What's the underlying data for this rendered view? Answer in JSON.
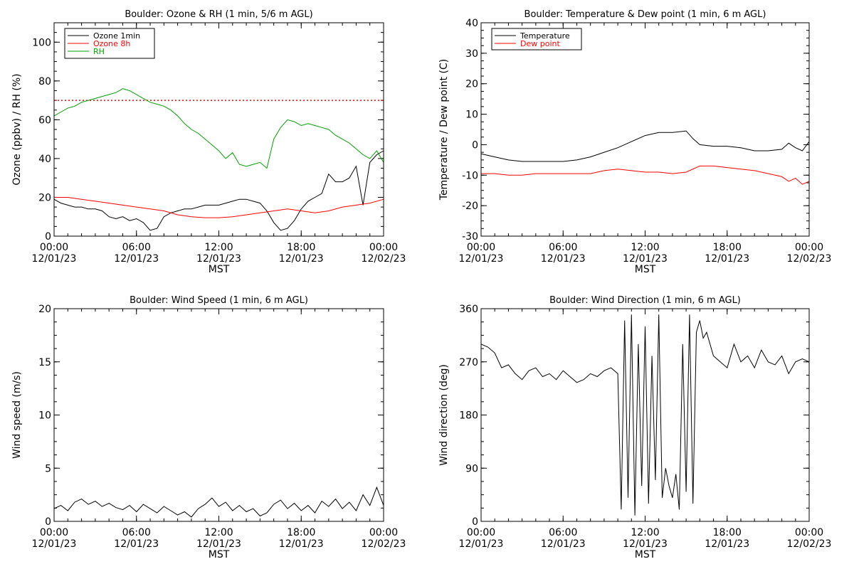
{
  "chart_data": [
    {
      "type": "line",
      "title": "Boulder: Ozone & RH (1 min, 5/6 m AGL)",
      "ylabel": "Ozone (ppbv) / RH (%)",
      "xlabel": "MST",
      "xlim": [
        0,
        24
      ],
      "ylim": [
        0,
        110
      ],
      "yticks": [
        0,
        20,
        40,
        60,
        80,
        100
      ],
      "xticks": [
        {
          "time": "00:00",
          "date": "12/01/23"
        },
        {
          "time": "06:00",
          "date": "12/01/23"
        },
        {
          "time": "12:00",
          "date": "12/01/23"
        },
        {
          "time": "18:00",
          "date": "12/01/23"
        },
        {
          "time": "00:00",
          "date": "12/02/23"
        }
      ],
      "legend_position": "top-left",
      "reference_line": {
        "y": 70,
        "color": "#ff0000",
        "style": "dotted"
      },
      "series": [
        {
          "name": "Ozone 1min",
          "color": "#000000",
          "x": [
            0,
            0.5,
            1,
            1.5,
            2,
            2.5,
            3,
            3.5,
            4,
            4.5,
            5,
            5.5,
            6,
            6.5,
            7,
            7.5,
            8,
            8.5,
            9,
            9.5,
            10,
            10.5,
            11,
            11.5,
            12,
            12.5,
            13,
            13.5,
            14,
            14.5,
            15,
            15.5,
            16,
            16.5,
            17,
            17.5,
            18,
            18.5,
            19,
            19.5,
            20,
            20.5,
            21,
            21.5,
            22,
            22.5,
            23,
            23.5,
            24
          ],
          "y": [
            19,
            17,
            16,
            15,
            15,
            14,
            14,
            13,
            10,
            9,
            10,
            8,
            9,
            7,
            3,
            4,
            10,
            12,
            13,
            14,
            14,
            15,
            16,
            16,
            16,
            17,
            18,
            19,
            19,
            18,
            17,
            13,
            7,
            3,
            4,
            8,
            14,
            18,
            20,
            22,
            32,
            28,
            28,
            30,
            36,
            16,
            38,
            42,
            44
          ]
        },
        {
          "name": "Ozone 8h",
          "color": "#ff0000",
          "x": [
            0,
            1,
            2,
            3,
            4,
            5,
            6,
            7,
            8,
            9,
            10,
            11,
            12,
            13,
            14,
            15,
            16,
            17,
            18,
            19,
            20,
            21,
            22,
            23,
            24
          ],
          "y": [
            20,
            20,
            19,
            18,
            17,
            16,
            15,
            14,
            13,
            11,
            10,
            9.5,
            9.5,
            10,
            11,
            12,
            13,
            14,
            13,
            12,
            13,
            15,
            16,
            17,
            19
          ]
        },
        {
          "name": "RH",
          "color": "#00a000",
          "x": [
            0,
            0.5,
            1,
            1.5,
            2,
            2.5,
            3,
            3.5,
            4,
            4.5,
            5,
            5.5,
            6,
            6.5,
            7,
            7.5,
            8,
            8.5,
            9,
            9.5,
            10,
            10.5,
            11,
            11.5,
            12,
            12.5,
            13,
            13.5,
            14,
            14.5,
            15,
            15.5,
            16,
            16.5,
            17,
            17.5,
            18,
            18.5,
            19,
            19.5,
            20,
            20.5,
            21,
            21.5,
            22,
            22.5,
            23,
            23.5,
            24
          ],
          "y": [
            62,
            64,
            66,
            67,
            69,
            70,
            71,
            72,
            73,
            74,
            76,
            75,
            73,
            71,
            69,
            68,
            67,
            65,
            62,
            58,
            55,
            53,
            50,
            47,
            44,
            40,
            43,
            37,
            36,
            37,
            38,
            35,
            50,
            56,
            60,
            59,
            57,
            58,
            57,
            56,
            55,
            52,
            50,
            48,
            45,
            42,
            40,
            44,
            38
          ]
        }
      ]
    },
    {
      "type": "line",
      "title": "Boulder: Temperature & Dew point (1 min, 6 m AGL)",
      "ylabel": "Temperature / Dew point (C)",
      "xlabel": "MST",
      "xlim": [
        0,
        24
      ],
      "ylim": [
        -30,
        40
      ],
      "yticks": [
        -30,
        -20,
        -10,
        0,
        10,
        20,
        30,
        40
      ],
      "xticks": [
        {
          "time": "00:00",
          "date": "12/01/23"
        },
        {
          "time": "06:00",
          "date": "12/01/23"
        },
        {
          "time": "12:00",
          "date": "12/01/23"
        },
        {
          "time": "18:00",
          "date": "12/01/23"
        },
        {
          "time": "00:00",
          "date": "12/02/23"
        }
      ],
      "legend_position": "top-left",
      "series": [
        {
          "name": "Temperature",
          "color": "#000000",
          "x": [
            0,
            1,
            2,
            3,
            4,
            5,
            6,
            7,
            8,
            9,
            10,
            11,
            12,
            13,
            14,
            15,
            15.5,
            16,
            17,
            18,
            19,
            20,
            21,
            22,
            22.5,
            23,
            23.5,
            24
          ],
          "y": [
            -3,
            -4,
            -5,
            -5.5,
            -5.5,
            -5.5,
            -5.5,
            -5,
            -4,
            -2.5,
            -1,
            1,
            3,
            4,
            4,
            4.5,
            2,
            0,
            -0.5,
            -0.5,
            -1,
            -2,
            -2,
            -1.5,
            0.5,
            -1,
            -2,
            1
          ]
        },
        {
          "name": "Dew point",
          "color": "#ff0000",
          "x": [
            0,
            1,
            2,
            3,
            4,
            5,
            6,
            7,
            8,
            9,
            10,
            11,
            12,
            13,
            14,
            15,
            16,
            17,
            18,
            19,
            20,
            21,
            22,
            22.5,
            23,
            23.5,
            24
          ],
          "y": [
            -9.5,
            -9.5,
            -10,
            -10,
            -9.5,
            -9.5,
            -9.5,
            -9.5,
            -9.5,
            -8.5,
            -8,
            -8.5,
            -9,
            -9,
            -9.5,
            -9,
            -7,
            -7,
            -7.5,
            -8,
            -8.5,
            -9.5,
            -10.5,
            -12,
            -11,
            -13,
            -12
          ]
        }
      ]
    },
    {
      "type": "line",
      "title": "Boulder: Wind Speed (1 min, 6 m AGL)",
      "ylabel": "Wind speed (m/s)",
      "xlabel": "MST",
      "xlim": [
        0,
        24
      ],
      "ylim": [
        0,
        20
      ],
      "yticks": [
        0,
        5,
        10,
        15,
        20
      ],
      "xticks": [
        {
          "time": "00:00",
          "date": "12/01/23"
        },
        {
          "time": "06:00",
          "date": "12/01/23"
        },
        {
          "time": "12:00",
          "date": "12/01/23"
        },
        {
          "time": "18:00",
          "date": "12/01/23"
        },
        {
          "time": "00:00",
          "date": "12/02/23"
        }
      ],
      "series": [
        {
          "color": "#000000",
          "x": [
            0,
            0.5,
            1,
            1.5,
            2,
            2.5,
            3,
            3.5,
            4,
            4.5,
            5,
            5.5,
            6,
            6.5,
            7,
            7.5,
            8,
            8.5,
            9,
            9.5,
            10,
            10.5,
            11,
            11.5,
            12,
            12.5,
            13,
            13.5,
            14,
            14.5,
            15,
            15.5,
            16,
            16.5,
            17,
            17.5,
            18,
            18.5,
            19,
            19.5,
            20,
            20.5,
            21,
            21.5,
            22,
            22.5,
            23,
            23.5,
            24
          ],
          "y": [
            1.2,
            1.5,
            1.0,
            1.8,
            2.1,
            1.6,
            1.9,
            1.4,
            1.7,
            1.3,
            1.1,
            1.5,
            0.9,
            1.6,
            1.2,
            0.8,
            1.4,
            1.0,
            0.6,
            0.9,
            0.4,
            1.2,
            1.6,
            2.2,
            1.4,
            1.8,
            1.0,
            1.5,
            0.9,
            1.2,
            0.5,
            0.8,
            1.6,
            2.0,
            1.2,
            1.7,
            1.0,
            1.5,
            0.8,
            1.9,
            1.4,
            2.1,
            1.2,
            1.8,
            1.0,
            2.5,
            1.5,
            3.2,
            1.5
          ]
        }
      ]
    },
    {
      "type": "line",
      "title": "Boulder: Wind Direction (1 min, 6 m AGL)",
      "ylabel": "Wind direction (deg)",
      "xlabel": "MST",
      "xlim": [
        0,
        24
      ],
      "ylim": [
        0,
        360
      ],
      "yticks": [
        0,
        90,
        180,
        270,
        360
      ],
      "xticks": [
        {
          "time": "00:00",
          "date": "12/01/23"
        },
        {
          "time": "06:00",
          "date": "12/01/23"
        },
        {
          "time": "12:00",
          "date": "12/01/23"
        },
        {
          "time": "18:00",
          "date": "12/01/23"
        },
        {
          "time": "00:00",
          "date": "12/02/23"
        }
      ],
      "series": [
        {
          "color": "#000000",
          "x": [
            0,
            0.5,
            1,
            1.5,
            2,
            2.5,
            3,
            3.5,
            4,
            4.5,
            5,
            5.5,
            6,
            6.5,
            7,
            7.5,
            8,
            8.5,
            9,
            9.5,
            10,
            10.25,
            10.5,
            10.75,
            11,
            11.25,
            11.5,
            11.75,
            12,
            12.25,
            12.5,
            12.75,
            13,
            13.25,
            13.5,
            13.75,
            14,
            14.25,
            14.5,
            14.75,
            15,
            15.25,
            15.5,
            15.75,
            16,
            16.25,
            16.5,
            17,
            17.5,
            18,
            18.5,
            19,
            19.5,
            20,
            20.5,
            21,
            21.5,
            22,
            22.5,
            23,
            23.5,
            24
          ],
          "y": [
            300,
            295,
            285,
            260,
            265,
            250,
            240,
            255,
            260,
            245,
            250,
            240,
            255,
            245,
            235,
            240,
            250,
            245,
            255,
            260,
            250,
            20,
            340,
            40,
            350,
            10,
            300,
            60,
            330,
            30,
            280,
            70,
            350,
            40,
            90,
            60,
            40,
            80,
            20,
            300,
            50,
            350,
            30,
            320,
            340,
            310,
            320,
            280,
            270,
            260,
            300,
            270,
            280,
            260,
            290,
            270,
            265,
            280,
            250,
            270,
            275,
            270
          ]
        }
      ]
    }
  ]
}
